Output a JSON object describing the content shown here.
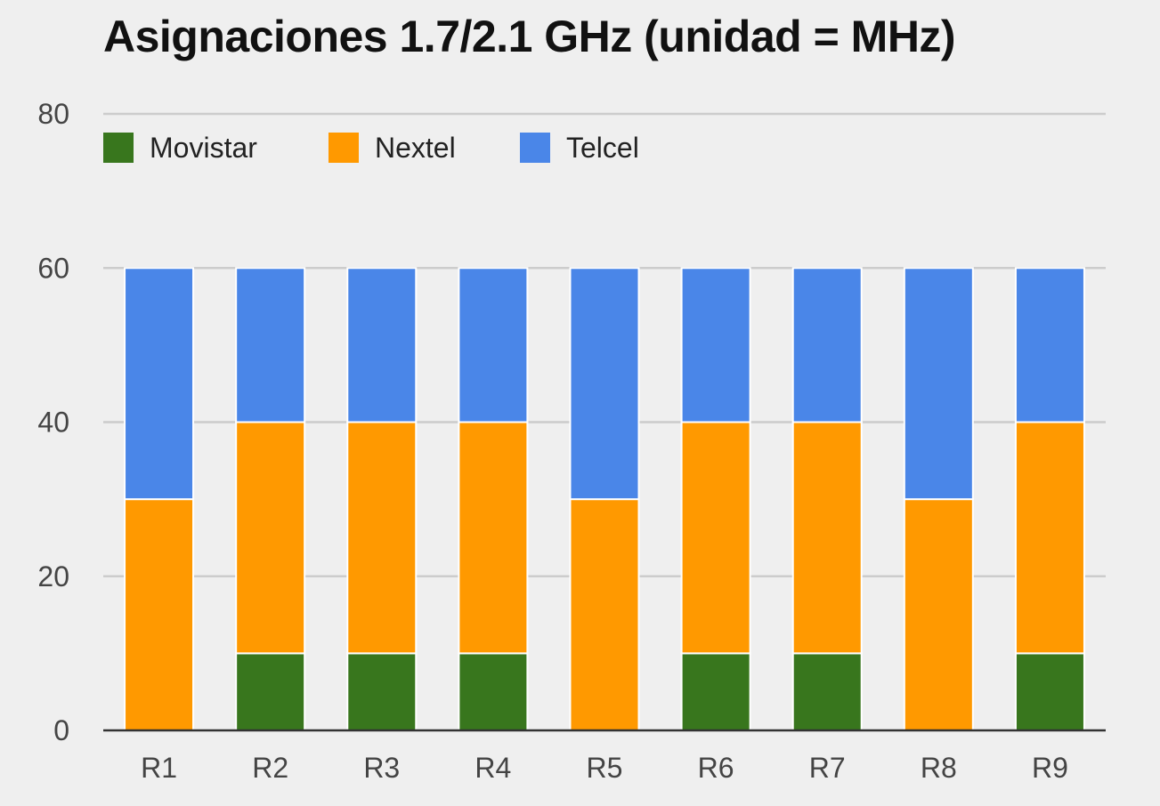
{
  "chart_data": {
    "type": "bar",
    "stacked": true,
    "title": "Asignaciones 1.7/2.1 GHz (unidad = MHz)",
    "categories": [
      "R1",
      "R2",
      "R3",
      "R4",
      "R5",
      "R6",
      "R7",
      "R8",
      "R9"
    ],
    "series": [
      {
        "name": "Movistar",
        "color": "#38761d",
        "values": [
          0,
          10,
          10,
          10,
          0,
          10,
          10,
          0,
          10
        ]
      },
      {
        "name": "Nextel",
        "color": "#ff9900",
        "values": [
          30,
          30,
          30,
          30,
          30,
          30,
          30,
          30,
          30
        ]
      },
      {
        "name": "Telcel",
        "color": "#4a86e8",
        "values": [
          30,
          20,
          20,
          20,
          30,
          20,
          20,
          30,
          20
        ]
      }
    ],
    "ylim": [
      0,
      80
    ],
    "yticks": [
      0,
      20,
      40,
      60,
      80
    ],
    "grid": true,
    "legend_position": "top-left"
  }
}
